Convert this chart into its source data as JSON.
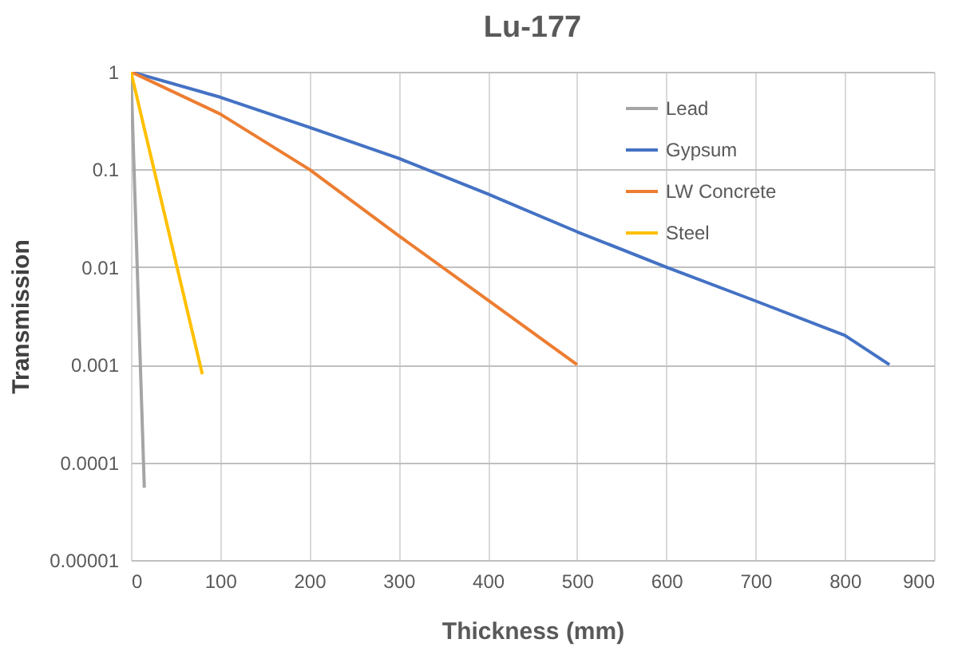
{
  "chart_data": {
    "type": "line",
    "title": "Lu-177",
    "xlabel": "Thickness (mm)",
    "ylabel": "Transmission",
    "log": "y",
    "grid": true,
    "legend": "top right",
    "xlim": [
      0,
      900
    ],
    "xticks": [
      0,
      100,
      200,
      300,
      400,
      500,
      600,
      700,
      800,
      900
    ],
    "ylim": [
      1e-05,
      1
    ],
    "yticks": [
      {
        "value": 1e-05,
        "label": "0.00001"
      },
      0.0001,
      0.001,
      0.01,
      0.1,
      1
    ],
    "series": [
      {
        "name": "Lead",
        "color": "#a5a5a5",
        "x": [
          0,
          15
        ],
        "values": [
          1,
          5.5e-05
        ]
      },
      {
        "name": "Gypsum",
        "color": "#4472c4",
        "x": [
          0,
          100,
          200,
          300,
          400,
          500,
          600,
          700,
          800,
          850
        ],
        "values": [
          1,
          0.55,
          0.27,
          0.13,
          0.056,
          0.023,
          0.01,
          0.0045,
          0.002,
          0.001
        ]
      },
      {
        "name": "LW Concrete",
        "color": "#ed7d31",
        "x": [
          0,
          100,
          200,
          300,
          400,
          500
        ],
        "values": [
          1,
          0.37,
          0.1,
          0.021,
          0.0046,
          0.001
        ]
      },
      {
        "name": "Steel",
        "color": "#ffc000",
        "x": [
          0,
          80
        ],
        "values": [
          1,
          0.0008
        ]
      }
    ]
  }
}
